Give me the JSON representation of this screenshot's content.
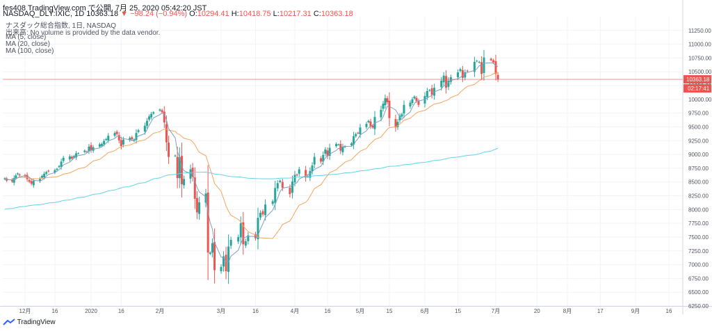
{
  "header": {
    "line1": "fes408 TradingView.com で公開, 7月 25, 2020 05:42:20 JST",
    "symbol": "NASDAQ_DLY:IXIC, 1D 10363.18",
    "change": "−98.24 (−0.94%)",
    "o_label": "O:",
    "o_value": "10294.41",
    "h_label": "H:",
    "h_value": "10418.75",
    "l_label": "L:",
    "l_value": "10217.31",
    "c_label": "C:",
    "c_value": "10363.18"
  },
  "legend": {
    "title": "ナスダック総合指数, 1日, NASDAQ",
    "volume": "出来高: No volume is provided by the data vendor.",
    "ma5": "MA (5, close)",
    "ma20": "MA (20, close)",
    "ma100": "MA (100, close)"
  },
  "footer": {
    "brand": "TradingView"
  },
  "colors": {
    "up": "#26a69a",
    "down": "#ef5350",
    "ma5": "#7b9fbf",
    "ma20": "#f7a35c",
    "ma100": "#62d3e8",
    "last_price": "#ef5350"
  },
  "chart_data": {
    "type": "candlestick",
    "y_range": [
      6250,
      11500
    ],
    "y_ticks": [
      6250,
      6500,
      6750,
      7000,
      7250,
      7500,
      7750,
      8000,
      8250,
      8500,
      8750,
      9000,
      9250,
      9500,
      9750,
      10000,
      10250,
      10500,
      10750,
      11000,
      11250
    ],
    "x_ticks": [
      {
        "label": "12月",
        "date": "2019-12-02"
      },
      {
        "label": "16",
        "date": "2019-12-16"
      },
      {
        "label": "2020",
        "date": "2020-01-02"
      },
      {
        "label": "16",
        "date": "2020-01-16"
      },
      {
        "label": "2月",
        "date": "2020-02-03"
      },
      {
        "label": "3月",
        "date": "2020-03-02"
      },
      {
        "label": "16",
        "date": "2020-03-16"
      },
      {
        "label": "4月",
        "date": "2020-04-01"
      },
      {
        "label": "16",
        "date": "2020-04-16"
      },
      {
        "label": "5月",
        "date": "2020-05-01"
      },
      {
        "label": "15",
        "date": "2020-05-15"
      },
      {
        "label": "6月",
        "date": "2020-06-01"
      },
      {
        "label": "15",
        "date": "2020-06-15"
      },
      {
        "label": "7月",
        "date": "2020-07-01"
      },
      {
        "label": "20",
        "date": "2020-07-20"
      },
      {
        "label": "8月",
        "date": "2020-08-03"
      },
      {
        "label": "17",
        "date": "2020-08-17"
      },
      {
        "label": "9月",
        "date": "2020-09-01"
      },
      {
        "label": "16",
        "date": "2020-09-16"
      }
    ],
    "last_price": {
      "value": 10363.18,
      "label": "10363.18",
      "countdown": "02:17:41"
    },
    "closes": [
      8570,
      8525,
      8510,
      8570,
      8620,
      8655,
      8620,
      8600,
      8550,
      8505,
      8470,
      8520,
      8560,
      8610,
      8650,
      8680,
      8690,
      8715,
      8740,
      8790,
      8870,
      8940,
      8965,
      8925,
      8970,
      9020,
      9020,
      9070,
      9050,
      9140,
      9080,
      9130,
      9185,
      9190,
      9245,
      9280,
      9340,
      9390,
      9370,
      9255,
      9150,
      9270,
      9300,
      9275,
      9270,
      9390,
      9440,
      9520,
      9610,
      9690,
      9735,
      9765,
      9815,
      9765,
      9580,
      9220,
      8955,
      8980,
      8570,
      8950,
      8460,
      8555,
      8730,
      8595,
      8195,
      7950,
      8130,
      8290,
      7220,
      7220,
      7390,
      6900,
      6960,
      7150,
      6880,
      7330,
      7450,
      7500,
      7750,
      7370,
      7425,
      7530,
      7480,
      7850,
      7940,
      7910,
      8090,
      8150,
      8390,
      8480,
      8525,
      8395,
      8280,
      8510,
      8630,
      8620,
      8730,
      8580,
      8610,
      8700,
      8800,
      8955,
      8870,
      8990,
      9090,
      8970,
      9120,
      9190,
      9180,
      9070,
      9140,
      9150,
      9200,
      9330,
      9370,
      9385,
      9490,
      9555,
      9610,
      9510,
      9490,
      9680,
      9810,
      9920,
      10020,
      9950,
      9660,
      9490,
      9590,
      9700,
      9730,
      9900,
      9940,
      10000,
      10050,
      9970,
      9900,
      10060,
      10150,
      10170,
      10080,
      10210,
      10340,
      10430,
      10210,
      10340,
      10400,
      10490,
      10550,
      10390,
      10490,
      10510,
      10680,
      10700,
      10680,
      10460,
      10760,
      10710,
      10670,
      10460,
      10363
    ]
  }
}
